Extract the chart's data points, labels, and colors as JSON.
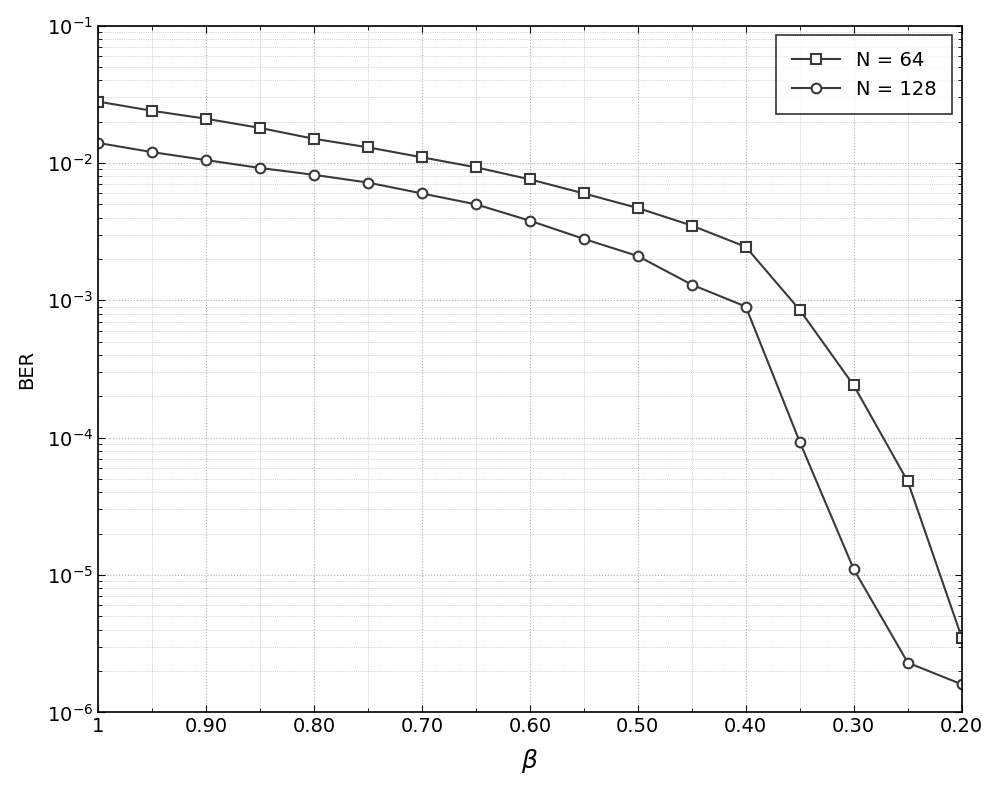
{
  "title": "",
  "xlabel": "$\\beta$",
  "ylabel": "BER",
  "xlim": [
    0.2,
    1.0
  ],
  "ylim": [
    1e-06,
    0.1
  ],
  "xticks": [
    1,
    0.9,
    0.8,
    0.7,
    0.6,
    0.5,
    0.4,
    0.3,
    0.2
  ],
  "xtick_labels": [
    "1",
    "0.90",
    "0.80",
    "0.70",
    "0.60",
    "0.50",
    "0.40",
    "0.30",
    "0.20"
  ],
  "line_color": "#3a3a3a",
  "background_color": "#ffffff",
  "grid_color": "#b0b0b0",
  "legend_labels": [
    "N = 64",
    "N = 128"
  ],
  "N64_beta": [
    1.0,
    0.95,
    0.9,
    0.85,
    0.8,
    0.75,
    0.7,
    0.65,
    0.6,
    0.55,
    0.5,
    0.45,
    0.4,
    0.35,
    0.3,
    0.25,
    0.2
  ],
  "N64_BER": [
    0.028,
    0.024,
    0.021,
    0.018,
    0.015,
    0.013,
    0.011,
    0.0093,
    0.0076,
    0.006,
    0.0047,
    0.0035,
    0.00245,
    0.00085,
    0.00024,
    4.8e-05,
    3.5e-06
  ],
  "N128_beta": [
    1.0,
    0.95,
    0.9,
    0.85,
    0.8,
    0.75,
    0.7,
    0.65,
    0.6,
    0.55,
    0.5,
    0.45,
    0.4,
    0.35,
    0.3,
    0.25,
    0.2
  ],
  "N128_BER": [
    0.014,
    0.012,
    0.0105,
    0.0092,
    0.0082,
    0.0072,
    0.006,
    0.005,
    0.0038,
    0.0028,
    0.0021,
    0.0013,
    0.0009,
    9.3e-05,
    1.1e-05,
    2.3e-06,
    1.6e-06
  ]
}
